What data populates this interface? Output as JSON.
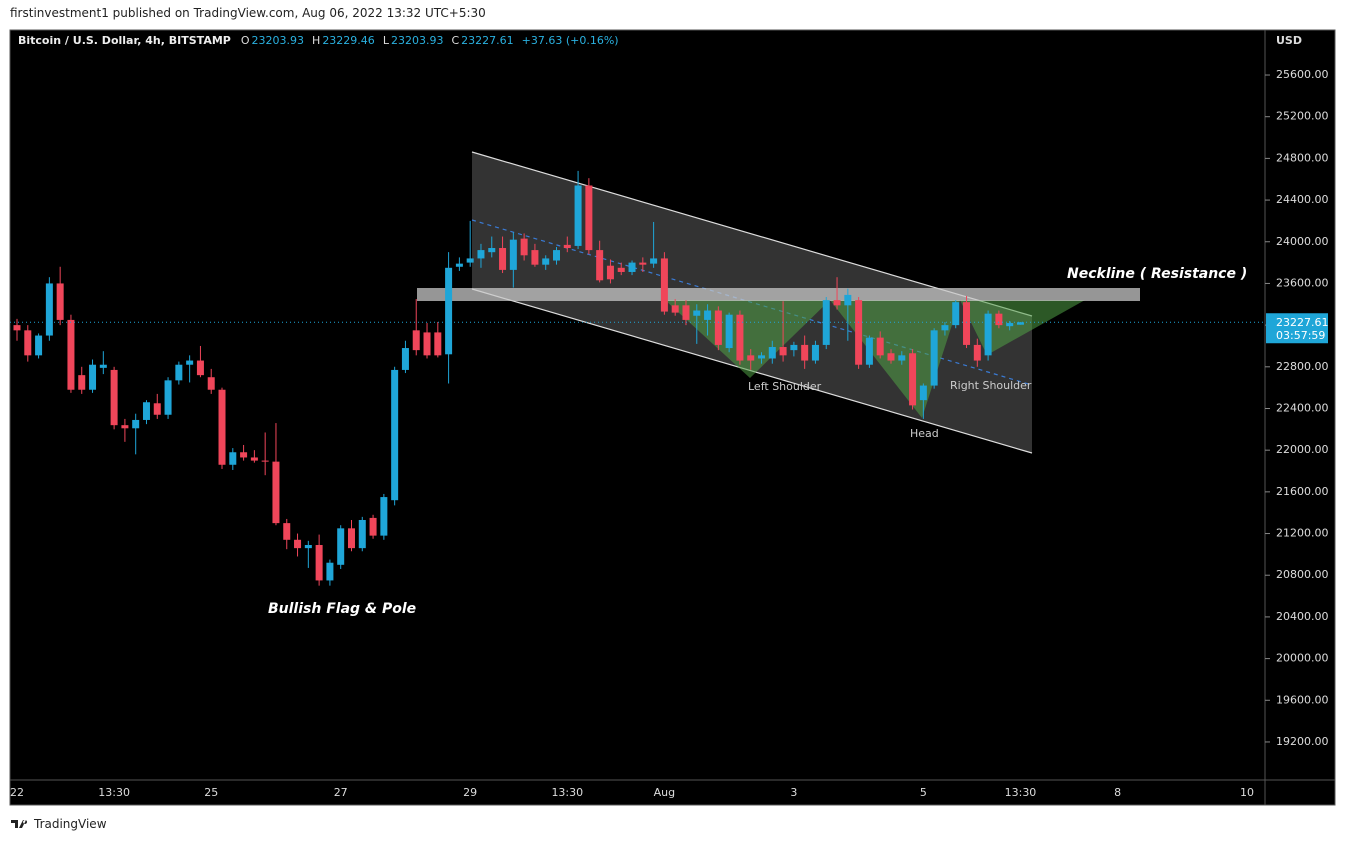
{
  "header": {
    "published": "firstinvestment1 published on TradingView.com, Aug 06, 2022 13:32 UTC+5:30",
    "brand": "TradingView",
    "symbol": "Bitcoin / U.S. Dollar, 4h, BITSTAMP",
    "ohlc_labels": [
      "O",
      "H",
      "L",
      "C"
    ],
    "change": "+37.63 (+0.16%)",
    "currency": "USD",
    "countdown": "03:57:59"
  },
  "chart_data": {
    "type": "candlestick",
    "annotations": [
      "Neckline ( Resistance )",
      "Bullish Flag & Pole",
      "Left Shoulder",
      "Head",
      "Right Shoulder"
    ],
    "up_color": "#1fa6d8",
    "down_color": "#f0465a",
    "grid": false,
    "ylim": [
      18835,
      26032
    ],
    "yticks": [
      {
        "value": 19200,
        "label": "19200.00"
      },
      {
        "value": 19600,
        "label": "19600.00"
      },
      {
        "value": 20000,
        "label": "20000.00"
      },
      {
        "value": 20400,
        "label": "20400.00"
      },
      {
        "value": 20800,
        "label": "20800.00"
      },
      {
        "value": 21200,
        "label": "21200.00"
      },
      {
        "value": 21600,
        "label": "21600.00"
      },
      {
        "value": 22000,
        "label": "22000.00"
      },
      {
        "value": 22400,
        "label": "22400.00"
      },
      {
        "value": 22800,
        "label": "22800.00"
      },
      {
        "value": 23200,
        "label": "23200.00"
      },
      {
        "value": 23600,
        "label": "23600.00"
      },
      {
        "value": 24000,
        "label": "24000.00"
      },
      {
        "value": 24400,
        "label": "24400.00"
      },
      {
        "value": 24800,
        "label": "24800.00"
      },
      {
        "value": 25200,
        "label": "25200.00"
      },
      {
        "value": 25600,
        "label": "25600.00"
      }
    ],
    "categories": [
      "22",
      null,
      null,
      null,
      null,
      null,
      null,
      null,
      null,
      "13:30",
      null,
      null,
      null,
      null,
      null,
      null,
      null,
      null,
      "25",
      null,
      null,
      null,
      null,
      null,
      null,
      null,
      null,
      null,
      null,
      null,
      "27",
      null,
      null,
      null,
      null,
      null,
      null,
      null,
      null,
      null,
      null,
      null,
      "29",
      null,
      null,
      null,
      null,
      null,
      null,
      null,
      null,
      "13:30",
      null,
      null,
      null,
      null,
      null,
      null,
      null,
      null,
      "Aug",
      null,
      null,
      null,
      null,
      null,
      null,
      null,
      null,
      null,
      null,
      null,
      "3",
      null,
      null,
      null,
      null,
      null,
      null,
      null,
      null,
      null,
      null,
      null,
      "5",
      null,
      null,
      null,
      null,
      null,
      null,
      null,
      null,
      "13:30",
      null,
      null,
      null,
      null,
      null,
      null,
      null,
      null,
      "8",
      null,
      null,
      null,
      null,
      null,
      null,
      null,
      null,
      null,
      null,
      null,
      "10",
      null
    ],
    "open": [
      23200,
      23150,
      22910,
      23100,
      23600,
      23250,
      22720,
      22580,
      22790,
      22770,
      22240,
      22210,
      22290,
      22450,
      22340,
      22670,
      22820,
      22860,
      22700,
      22580,
      21860,
      21980,
      21930,
      21900,
      21890,
      21300,
      21140,
      21060,
      21090,
      20750,
      20900,
      21250,
      21060,
      21350,
      21180,
      21520,
      22770,
      23150,
      23130,
      23130,
      22920,
      23760,
      23800,
      23840,
      23900,
      23940,
      23730,
      24030,
      23920,
      23780,
      23820,
      23970,
      23960,
      24540,
      23920,
      23770,
      23750,
      23710,
      23800,
      23790,
      23840,
      23390,
      23390,
      23290,
      23250,
      23340,
      22980,
      23300,
      22910,
      22880,
      22880,
      22990,
      22960,
      23010,
      22860,
      23010,
      23440,
      23390,
      23440,
      22820,
      23080,
      22930,
      22860,
      22930,
      22480,
      22620,
      23150,
      23200,
      23420,
      23010,
      22910,
      23310,
      23190,
      23203.93,
      null,
      null,
      null,
      null,
      null,
      null,
      null,
      null,
      null,
      null,
      null,
      null,
      null,
      null,
      null,
      null,
      null,
      null,
      null,
      null,
      null,
      null
    ],
    "high": [
      23260,
      23200,
      23120,
      23660,
      23760,
      23300,
      22800,
      22870,
      22950,
      22800,
      22300,
      22350,
      22480,
      22540,
      22700,
      22850,
      22910,
      23000,
      22780,
      22600,
      22020,
      22050,
      22000,
      22170,
      22260,
      21340,
      21200,
      21130,
      21190,
      20950,
      21280,
      21330,
      21360,
      21380,
      21580,
      22800,
      23050,
      23450,
      23220,
      23230,
      23900,
      23850,
      24200,
      23980,
      24050,
      24050,
      24090,
      24080,
      23980,
      23870,
      23950,
      24050,
      24680,
      24610,
      24010,
      23830,
      23800,
      23820,
      23850,
      24190,
      23900,
      23450,
      23440,
      23400,
      23400,
      23380,
      23320,
      23340,
      22970,
      22940,
      23050,
      23430,
      23040,
      23100,
      23050,
      23470,
      23660,
      23550,
      23470,
      23100,
      23140,
      22970,
      22950,
      22970,
      22640,
      23170,
      23230,
      23440,
      23480,
      23070,
      23340,
      23340,
      23240,
      23229.46,
      null,
      null,
      null,
      null,
      null,
      null,
      null,
      null,
      null,
      null,
      null,
      null,
      null,
      null,
      null,
      null,
      null,
      null,
      null,
      null,
      null,
      null
    ],
    "low": [
      23050,
      22850,
      22880,
      23050,
      23200,
      22550,
      22540,
      22550,
      22730,
      22200,
      22080,
      21960,
      22250,
      22300,
      22300,
      22630,
      22650,
      22700,
      22540,
      21820,
      21810,
      21900,
      21880,
      21760,
      21280,
      21050,
      20980,
      20870,
      20700,
      20700,
      20860,
      21030,
      21030,
      21150,
      21140,
      21470,
      22740,
      22910,
      22880,
      22890,
      22640,
      23720,
      23760,
      23750,
      23850,
      23700,
      23560,
      23820,
      23760,
      23730,
      23780,
      23900,
      23930,
      23880,
      23610,
      23600,
      23680,
      23680,
      23710,
      23750,
      23300,
      23290,
      23200,
      23020,
      23100,
      22960,
      22940,
      22820,
      22770,
      22830,
      22830,
      22850,
      22900,
      22780,
      22830,
      22970,
      23350,
      23050,
      22780,
      22790,
      22880,
      22830,
      22820,
      22390,
      22300,
      22590,
      23100,
      23170,
      22980,
      22800,
      22860,
      23170,
      23150,
      23203.93,
      null,
      null,
      null,
      null,
      null,
      null,
      null,
      null,
      null,
      null,
      null,
      null,
      null,
      null,
      null,
      null,
      null,
      null,
      null,
      null,
      null,
      null
    ],
    "close": [
      23150,
      22910,
      23100,
      23600,
      23250,
      22580,
      22580,
      22820,
      22820,
      22240,
      22210,
      22290,
      22460,
      22340,
      22670,
      22820,
      22860,
      22720,
      22580,
      21860,
      21980,
      21930,
      21900,
      21890,
      21300,
      21140,
      21060,
      21090,
      20750,
      20920,
      21250,
      21060,
      21330,
      21180,
      21550,
      22770,
      22980,
      22960,
      22910,
      22910,
      23750,
      23790,
      23840,
      23920,
      23940,
      23730,
      24020,
      23870,
      23780,
      23840,
      23920,
      23940,
      24540,
      23920,
      23630,
      23640,
      23710,
      23800,
      23780,
      23840,
      23330,
      23320,
      23250,
      23340,
      23340,
      23010,
      23300,
      22860,
      22860,
      22910,
      22990,
      22910,
      23010,
      22860,
      23010,
      23440,
      23390,
      23490,
      22820,
      23080,
      22910,
      22860,
      22910,
      22430,
      22620,
      23150,
      23200,
      23420,
      23010,
      22860,
      23310,
      23200,
      23220,
      23227.61,
      null,
      null,
      null,
      null,
      null,
      null,
      null,
      null,
      null,
      null,
      null,
      null,
      null,
      null,
      null,
      null,
      null,
      null,
      null,
      null,
      null,
      null
    ]
  }
}
